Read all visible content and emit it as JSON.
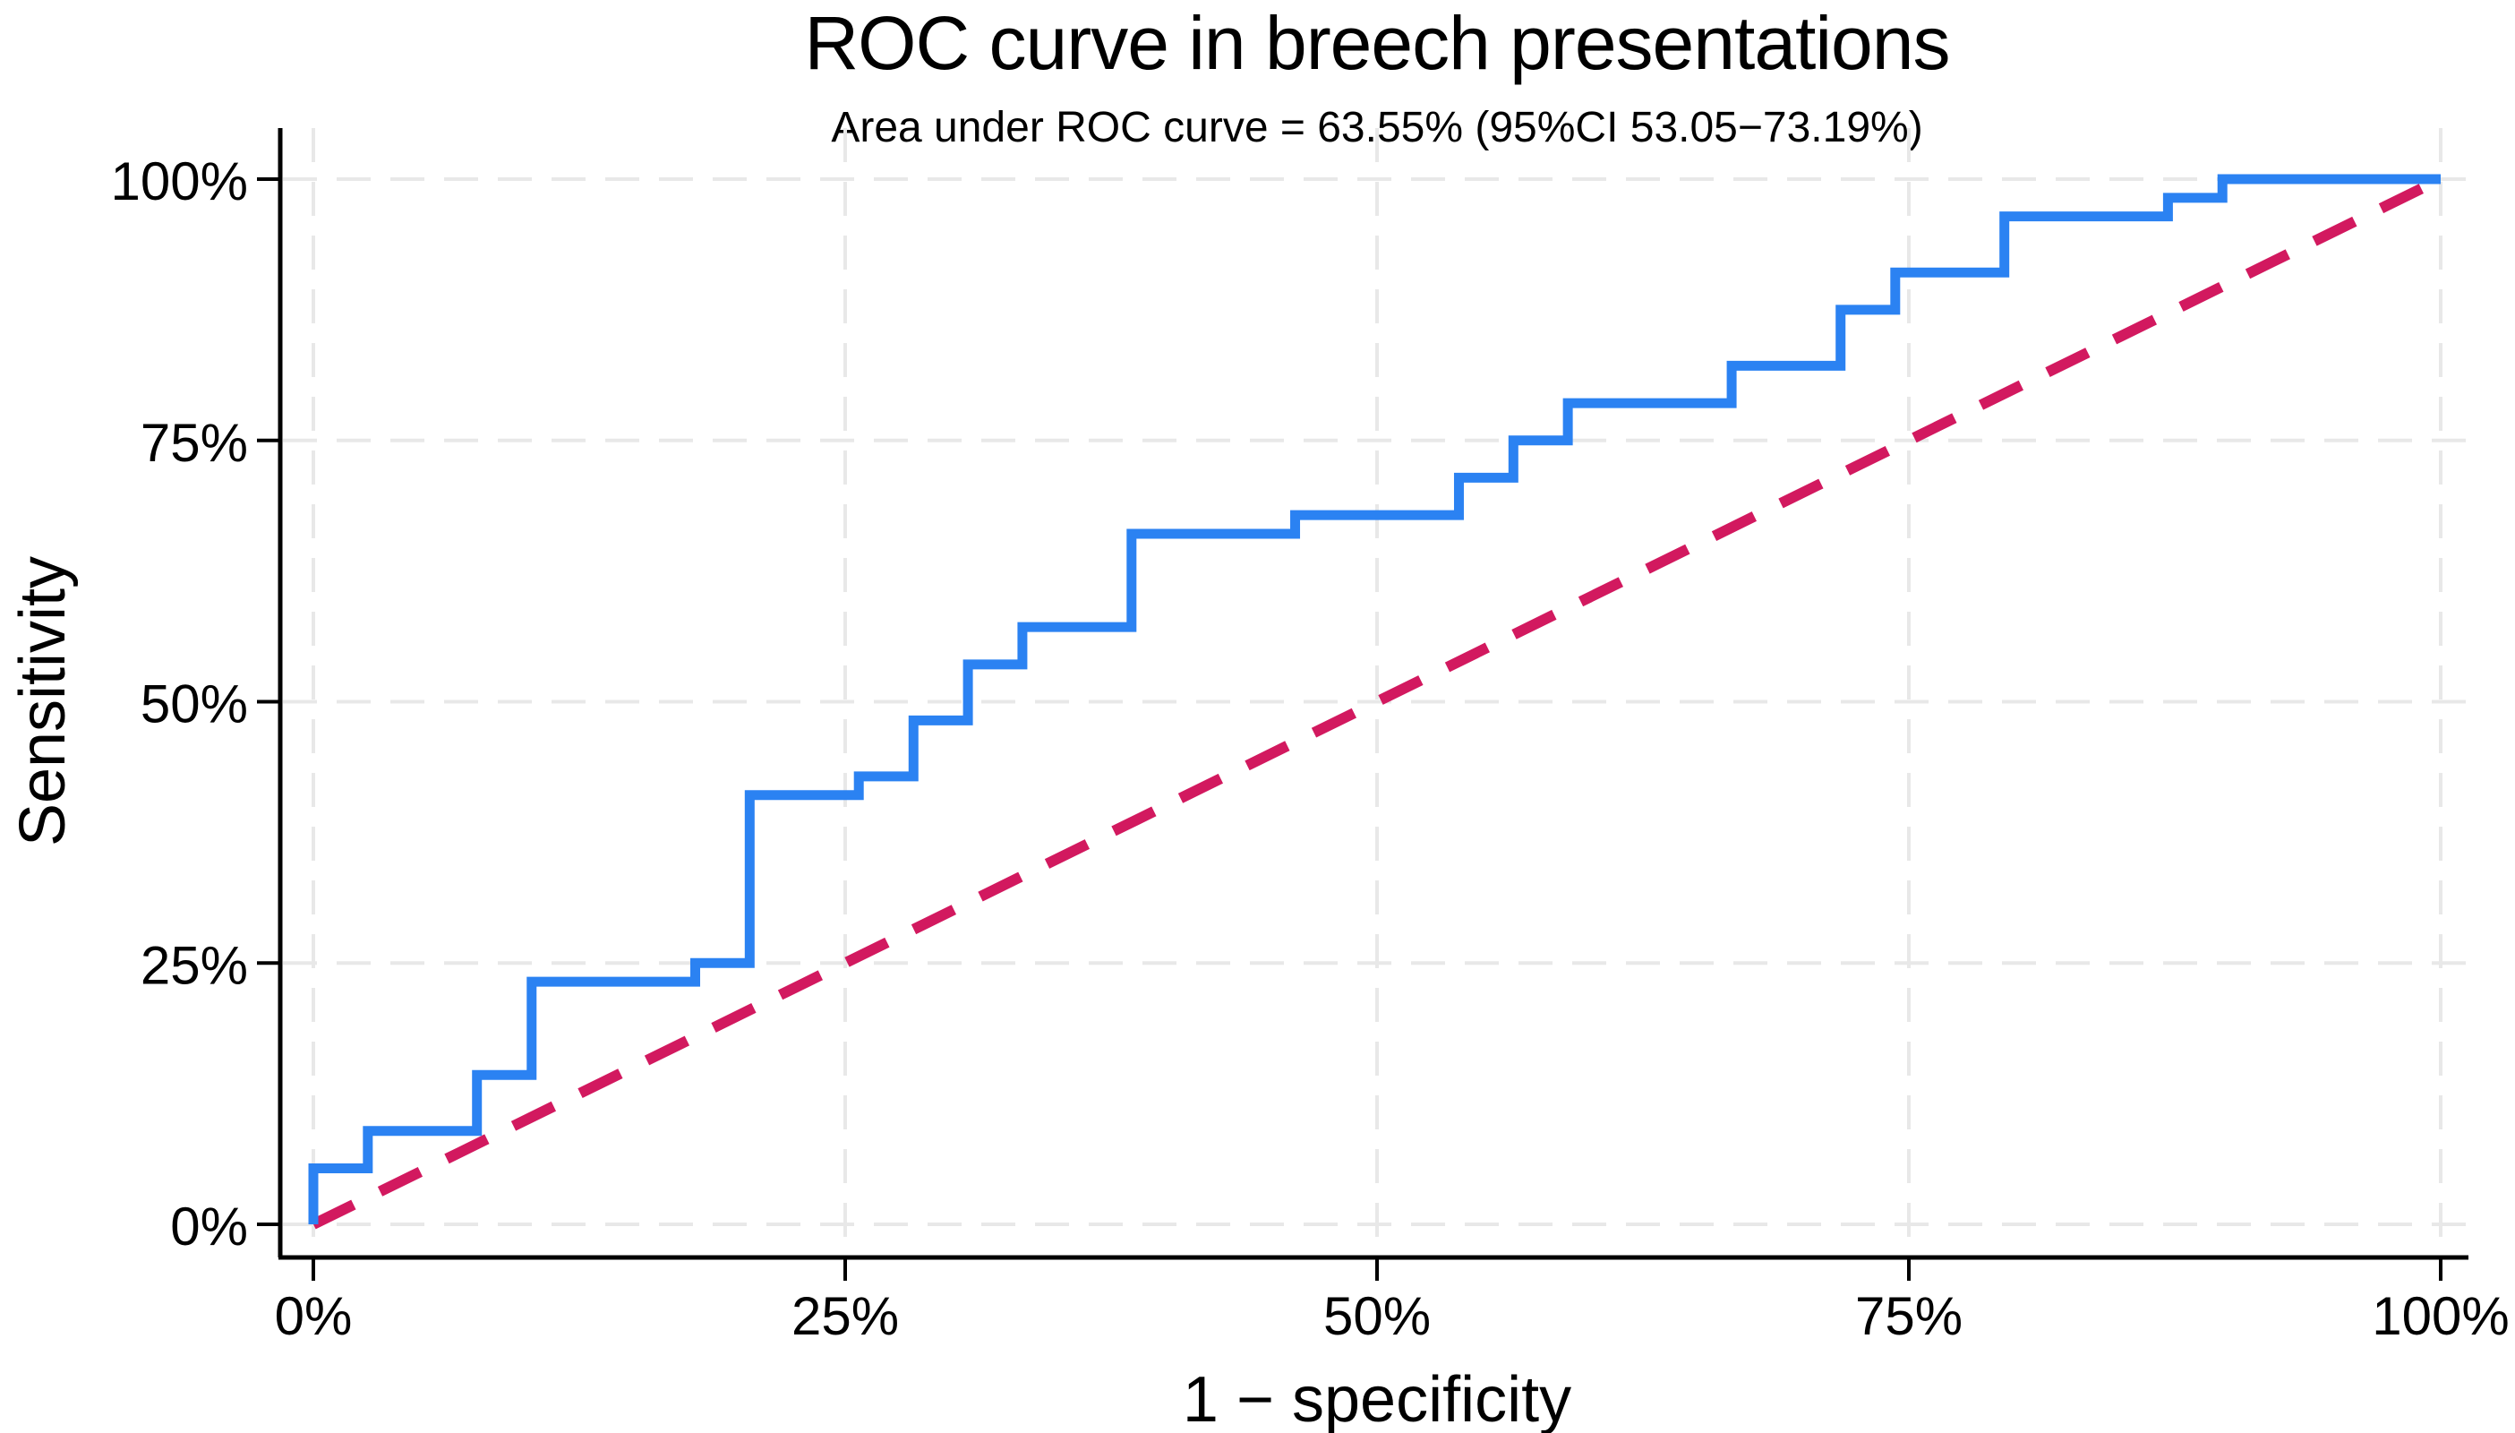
{
  "chart_data": {
    "type": "line",
    "subtype": "roc-step-curve",
    "title": "ROC curve in breech presentations",
    "subtitle": "Area under ROC curve = 63.55% (95%CI 53.05−73.19%)",
    "xlabel": "1 − specificity",
    "ylabel": "Sensitivity",
    "xlim": [
      0,
      100
    ],
    "ylim": [
      0,
      100
    ],
    "x_tick_values": [
      0,
      25,
      50,
      75,
      100
    ],
    "x_tick_labels": [
      "0%",
      "25%",
      "50%",
      "75%",
      "100%"
    ],
    "y_tick_values": [
      0,
      25,
      50,
      75,
      100
    ],
    "y_tick_labels": [
      "0%",
      "25%",
      "50%",
      "75%",
      "100%"
    ],
    "grid": "dashed, both axes, all ticks",
    "legend": "none",
    "auc_percent": 63.55,
    "auc_ci95_percent": [
      53.05,
      73.19
    ],
    "roc_points": [
      [
        0.0,
        0.0
      ],
      [
        0.0,
        5.36
      ],
      [
        2.56,
        5.36
      ],
      [
        2.56,
        8.93
      ],
      [
        7.69,
        8.93
      ],
      [
        7.69,
        14.29
      ],
      [
        10.26,
        14.29
      ],
      [
        10.26,
        23.21
      ],
      [
        17.95,
        23.21
      ],
      [
        17.95,
        25.0
      ],
      [
        20.51,
        25.0
      ],
      [
        20.51,
        41.07
      ],
      [
        25.64,
        41.07
      ],
      [
        25.64,
        42.86
      ],
      [
        28.21,
        42.86
      ],
      [
        28.21,
        48.21
      ],
      [
        30.77,
        48.21
      ],
      [
        30.77,
        53.57
      ],
      [
        33.33,
        53.57
      ],
      [
        33.33,
        57.14
      ],
      [
        38.46,
        57.14
      ],
      [
        38.46,
        66.07
      ],
      [
        46.15,
        66.07
      ],
      [
        46.15,
        67.86
      ],
      [
        53.85,
        67.86
      ],
      [
        53.85,
        71.43
      ],
      [
        56.41,
        71.43
      ],
      [
        56.41,
        75.0
      ],
      [
        58.97,
        75.0
      ],
      [
        58.97,
        78.57
      ],
      [
        66.67,
        78.57
      ],
      [
        66.67,
        82.14
      ],
      [
        71.79,
        82.14
      ],
      [
        71.79,
        87.5
      ],
      [
        74.36,
        87.5
      ],
      [
        74.36,
        91.07
      ],
      [
        79.49,
        91.07
      ],
      [
        79.49,
        96.43
      ],
      [
        87.18,
        96.43
      ],
      [
        87.18,
        98.21
      ],
      [
        89.74,
        98.21
      ],
      [
        89.74,
        100.0
      ],
      [
        100.0,
        100.0
      ]
    ],
    "reference_line": {
      "from": [
        0,
        0
      ],
      "to": [
        100,
        100
      ],
      "style": "dashed"
    },
    "colors": {
      "curve": "#2b82f2",
      "reference": "#d2195f",
      "grid": "#e8e8e8",
      "axis": "#000000",
      "background": "#ffffff"
    }
  }
}
